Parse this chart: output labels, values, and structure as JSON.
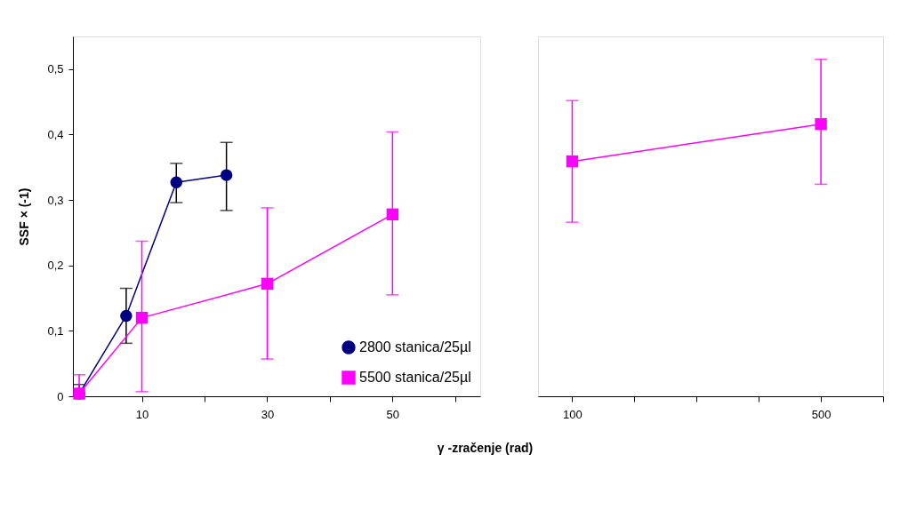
{
  "chart_data": [
    {
      "type": "line",
      "xlabel": "γ -zračenje (rad)",
      "ylabel": "SSF × (-1)",
      "xlim": [
        -1,
        64
      ],
      "xticks": [
        10,
        {
          "value": 20,
          "label": null
        },
        30,
        {
          "value": 40,
          "label": null
        },
        50,
        {
          "value": 60,
          "label": null
        }
      ],
      "ylim": [
        0,
        0.55
      ],
      "yticks": [
        0,
        {
          "value": 0.1,
          "label": "0,1"
        },
        {
          "value": 0.2,
          "label": "0,2"
        },
        {
          "value": 0.3,
          "label": "0,3"
        },
        {
          "value": 0.4,
          "label": "0,4"
        },
        {
          "value": 0.5,
          "label": "0,5"
        }
      ],
      "grid": false,
      "legend": "bottom right",
      "series": [
        {
          "name": "2800 stanica/25µl",
          "color": "#000080",
          "marker": "circle",
          "x": [
            0,
            7.5,
            15.5,
            23.5
          ],
          "values": [
            0.004,
            0.123,
            0.327,
            0.338
          ],
          "errors": [
            [
              0.004,
              0.018
            ],
            [
              0.081,
              0.165
            ],
            [
              0.296,
              0.356
            ],
            [
              0.284,
              0.388
            ]
          ]
        },
        {
          "name": "5500 stanica/25µl",
          "color": "#ff00ff",
          "marker": "square",
          "x": [
            0,
            10,
            30,
            50
          ],
          "values": [
            0.004,
            0.12,
            0.172,
            0.278
          ],
          "errors": [
            [
              0.004,
              0.033
            ],
            [
              0.007,
              0.237
            ],
            [
              0.057,
              0.288
            ],
            [
              0.155,
              0.404
            ]
          ]
        }
      ]
    },
    {
      "type": "line",
      "xlim": [
        45,
        600
      ],
      "xticks": [
        100,
        {
          "value": 200,
          "label": null
        },
        {
          "value": 300,
          "label": null
        },
        {
          "value": 400,
          "label": null
        },
        500,
        {
          "value": 600,
          "label": null
        }
      ],
      "ylim": [
        0,
        0.55
      ],
      "tick_labels": "x",
      "grid": false,
      "series": [
        {
          "color": "#ff00ff",
          "marker": "square",
          "x": [
            100,
            500
          ],
          "values": [
            0.359,
            0.416
          ],
          "errors": [
            [
              0.266,
              0.452
            ],
            [
              0.324,
              0.515
            ]
          ]
        }
      ]
    }
  ]
}
